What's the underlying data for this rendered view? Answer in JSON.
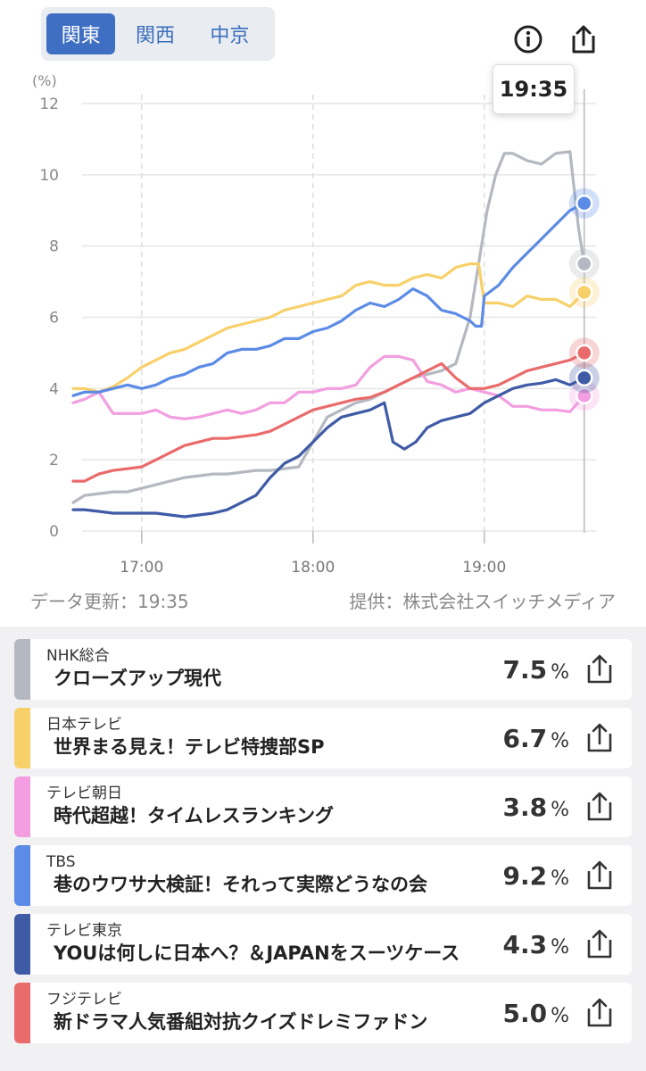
{
  "regions": [
    "関東",
    "関西",
    "中京"
  ],
  "active_region": 0,
  "tooltip_time": "19:35",
  "footer": {
    "updated": "データ更新：19:35",
    "provider": "提供：株式会社スイッチメディア"
  },
  "colors": {
    "nhk": "#b4b8c0",
    "ntv": "#f8d06a",
    "ex": "#f29ee0",
    "tbs": "#5b8be6",
    "tx": "#3f5ba6",
    "cx": "#ea6b6b"
  },
  "chart_data": {
    "type": "line",
    "yunit": "(%)",
    "ylim": [
      0,
      12
    ],
    "yticks": [
      0,
      2,
      4,
      6,
      8,
      10,
      12
    ],
    "xlim": [
      996,
      1176
    ],
    "xticks": [
      1020,
      1080,
      1140
    ],
    "xtick_labels": [
      "17:00",
      "18:00",
      "19:00"
    ],
    "current_x": 1175,
    "series": [
      {
        "key": "nhk",
        "name": "NHK総合",
        "color": "#b4b8c0",
        "x": [
          996,
          1000,
          1005,
          1010,
          1015,
          1020,
          1025,
          1030,
          1035,
          1040,
          1045,
          1050,
          1055,
          1060,
          1065,
          1070,
          1075,
          1080,
          1085,
          1090,
          1095,
          1100,
          1105,
          1110,
          1115,
          1120,
          1125,
          1130,
          1135,
          1138,
          1141,
          1144,
          1147,
          1150,
          1155,
          1160,
          1165,
          1170,
          1173,
          1175
        ],
        "y": [
          0.8,
          1.0,
          1.05,
          1.1,
          1.1,
          1.2,
          1.3,
          1.4,
          1.5,
          1.55,
          1.6,
          1.6,
          1.65,
          1.7,
          1.7,
          1.75,
          1.8,
          2.5,
          3.2,
          3.4,
          3.6,
          3.7,
          3.9,
          4.1,
          4.3,
          4.4,
          4.5,
          4.7,
          6.0,
          7.5,
          9.0,
          10.0,
          10.6,
          10.6,
          10.4,
          10.3,
          10.6,
          10.65,
          8.5,
          7.5
        ]
      },
      {
        "key": "ntv",
        "name": "日本テレビ",
        "color": "#f8d06a",
        "x": [
          996,
          1000,
          1005,
          1010,
          1015,
          1020,
          1025,
          1030,
          1035,
          1040,
          1045,
          1050,
          1055,
          1060,
          1065,
          1070,
          1075,
          1080,
          1085,
          1090,
          1095,
          1100,
          1105,
          1110,
          1115,
          1120,
          1125,
          1130,
          1135,
          1138,
          1140,
          1145,
          1150,
          1155,
          1160,
          1165,
          1170,
          1175
        ],
        "y": [
          4.0,
          4.0,
          3.9,
          4.05,
          4.3,
          4.6,
          4.8,
          5.0,
          5.1,
          5.3,
          5.5,
          5.7,
          5.8,
          5.9,
          6.0,
          6.2,
          6.3,
          6.4,
          6.5,
          6.6,
          6.9,
          7.0,
          6.9,
          6.9,
          7.1,
          7.2,
          7.1,
          7.4,
          7.5,
          7.5,
          6.4,
          6.4,
          6.3,
          6.6,
          6.5,
          6.5,
          6.3,
          6.7
        ]
      },
      {
        "key": "ex",
        "name": "テレビ朝日",
        "color": "#f29ee0",
        "x": [
          996,
          1000,
          1005,
          1010,
          1015,
          1020,
          1025,
          1030,
          1035,
          1040,
          1045,
          1050,
          1055,
          1060,
          1065,
          1070,
          1075,
          1080,
          1085,
          1090,
          1095,
          1100,
          1105,
          1110,
          1115,
          1120,
          1125,
          1130,
          1135,
          1140,
          1145,
          1150,
          1155,
          1160,
          1165,
          1170,
          1175
        ],
        "y": [
          3.6,
          3.7,
          3.9,
          3.3,
          3.3,
          3.3,
          3.4,
          3.2,
          3.15,
          3.2,
          3.3,
          3.4,
          3.3,
          3.4,
          3.6,
          3.6,
          3.9,
          3.9,
          4.0,
          4.0,
          4.1,
          4.6,
          4.9,
          4.9,
          4.8,
          4.2,
          4.1,
          3.9,
          4.0,
          3.9,
          3.8,
          3.5,
          3.5,
          3.4,
          3.4,
          3.35,
          3.8
        ]
      },
      {
        "key": "tbs",
        "name": "TBS",
        "color": "#5b8be6",
        "x": [
          996,
          1000,
          1005,
          1010,
          1015,
          1020,
          1025,
          1030,
          1035,
          1040,
          1045,
          1050,
          1055,
          1060,
          1065,
          1070,
          1075,
          1080,
          1085,
          1090,
          1095,
          1100,
          1105,
          1110,
          1115,
          1120,
          1125,
          1130,
          1135,
          1137,
          1139,
          1140,
          1145,
          1150,
          1155,
          1160,
          1165,
          1170,
          1175
        ],
        "y": [
          3.8,
          3.9,
          3.9,
          4.0,
          4.1,
          4.0,
          4.1,
          4.3,
          4.4,
          4.6,
          4.7,
          5.0,
          5.1,
          5.1,
          5.2,
          5.4,
          5.4,
          5.6,
          5.7,
          5.9,
          6.2,
          6.4,
          6.3,
          6.5,
          6.8,
          6.6,
          6.2,
          6.1,
          5.9,
          5.75,
          5.75,
          6.6,
          6.9,
          7.4,
          7.8,
          8.2,
          8.6,
          9.0,
          9.2
        ]
      },
      {
        "key": "tx",
        "name": "テレビ東京",
        "color": "#3f5ba6",
        "x": [
          996,
          1000,
          1005,
          1010,
          1015,
          1020,
          1025,
          1030,
          1035,
          1040,
          1045,
          1050,
          1055,
          1060,
          1065,
          1070,
          1075,
          1080,
          1085,
          1090,
          1095,
          1100,
          1105,
          1108,
          1112,
          1116,
          1120,
          1125,
          1130,
          1135,
          1140,
          1145,
          1150,
          1155,
          1160,
          1165,
          1170,
          1175
        ],
        "y": [
          0.6,
          0.6,
          0.55,
          0.5,
          0.5,
          0.5,
          0.5,
          0.45,
          0.4,
          0.45,
          0.5,
          0.6,
          0.8,
          1.0,
          1.5,
          1.9,
          2.1,
          2.5,
          2.9,
          3.2,
          3.3,
          3.4,
          3.6,
          2.5,
          2.3,
          2.5,
          2.9,
          3.1,
          3.2,
          3.3,
          3.6,
          3.8,
          4.0,
          4.1,
          4.15,
          4.25,
          4.1,
          4.3
        ]
      },
      {
        "key": "cx",
        "name": "フジテレビ",
        "color": "#ea6b6b",
        "x": [
          996,
          1000,
          1005,
          1010,
          1015,
          1020,
          1025,
          1030,
          1035,
          1040,
          1045,
          1050,
          1055,
          1060,
          1065,
          1070,
          1075,
          1080,
          1085,
          1090,
          1095,
          1100,
          1105,
          1110,
          1115,
          1120,
          1125,
          1130,
          1135,
          1140,
          1145,
          1150,
          1155,
          1160,
          1165,
          1170,
          1175
        ],
        "y": [
          1.4,
          1.4,
          1.6,
          1.7,
          1.75,
          1.8,
          2.0,
          2.2,
          2.4,
          2.5,
          2.6,
          2.6,
          2.65,
          2.7,
          2.8,
          3.0,
          3.2,
          3.4,
          3.5,
          3.6,
          3.7,
          3.75,
          3.9,
          4.1,
          4.3,
          4.5,
          4.7,
          4.3,
          4.0,
          4.0,
          4.1,
          4.3,
          4.5,
          4.6,
          4.7,
          4.8,
          5.0
        ]
      }
    ]
  },
  "programs": [
    {
      "key": "nhk",
      "channel": "NHK総合",
      "title": "クローズアップ現代",
      "rating": "7.5",
      "unit": "%"
    },
    {
      "key": "ntv",
      "channel": "日本テレビ",
      "title": "世界まる見え！テレビ特捜部SP",
      "rating": "6.7",
      "unit": "%"
    },
    {
      "key": "ex",
      "channel": "テレビ朝日",
      "title": "時代超越！タイムレスランキング",
      "rating": "3.8",
      "unit": "%"
    },
    {
      "key": "tbs",
      "channel": "TBS",
      "title": "巷のウワサ大検証！それって実際どうなの会",
      "rating": "9.2",
      "unit": "%"
    },
    {
      "key": "tx",
      "channel": "テレビ東京",
      "title": "YOUは何しに日本へ？＆JAPANをスーツケース",
      "rating": "4.3",
      "unit": "%"
    },
    {
      "key": "cx",
      "channel": "フジテレビ",
      "title": "新ドラマ人気番組対抗クイズドレミファドン",
      "rating": "5.0",
      "unit": "%"
    }
  ]
}
